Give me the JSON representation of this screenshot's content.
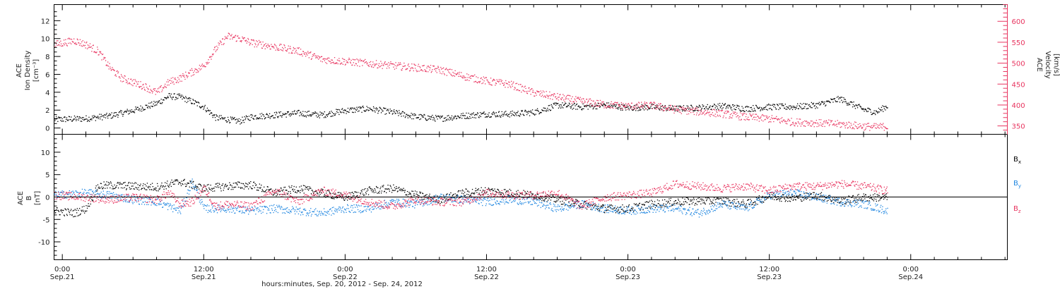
{
  "colors": {
    "black": "#000000",
    "pink": "#e8345f",
    "blue": "#1f86e0"
  },
  "x_axis": {
    "tick_labels": [
      {
        "time": "0:00",
        "date": "Sep.21",
        "hours": 0
      },
      {
        "time": "12:00",
        "date": "Sep.21",
        "hours": 12
      },
      {
        "time": "0:00",
        "date": "Sep.22",
        "hours": 24
      },
      {
        "time": "12:00",
        "date": "Sep.22",
        "hours": 36
      },
      {
        "time": "0:00",
        "date": "Sep.23",
        "hours": 48
      },
      {
        "time": "12:00",
        "date": "Sep.23",
        "hours": 60
      },
      {
        "time": "0:00",
        "date": "Sep.24",
        "hours": 72
      }
    ],
    "label": "hours:minutes, Sep. 20, 2012 - Sep. 24, 2012",
    "range_hours": [
      -0.7,
      80.2
    ]
  },
  "panel_top": {
    "left_label": [
      "ACE",
      "Ion Density",
      "[cm⁻³]"
    ],
    "right_label": [
      "ACE",
      "Velocity",
      "[km/s]"
    ],
    "left_ticks": [
      "0",
      "2",
      "4",
      "6",
      "8",
      "10",
      "12"
    ],
    "right_ticks": [
      "350",
      "400",
      "450",
      "500",
      "550",
      "600"
    ]
  },
  "panel_bottom": {
    "left_label": [
      "ACE",
      "B",
      "[nT]"
    ],
    "left_ticks": [
      "-10",
      "-5",
      "0",
      "5",
      "10"
    ],
    "legend": [
      {
        "name": "B",
        "sub": "x",
        "color": "#000000"
      },
      {
        "name": "B",
        "sub": "y",
        "color": "#1f86e0"
      },
      {
        "name": "B",
        "sub": "z",
        "color": "#e8345f"
      }
    ]
  },
  "chart_data": [
    {
      "type": "scatter",
      "title": "",
      "xlabel": "hours:minutes, Sep. 20, 2012 - Sep. 24, 2012",
      "series": [
        {
          "name": "Ion Density",
          "axis": "left",
          "color": "#000000",
          "ylim": [
            -0.7,
            13.8
          ],
          "x": [
            -0.7,
            2,
            4,
            6,
            8,
            9,
            10,
            11,
            12,
            13,
            14,
            15,
            16,
            18,
            20,
            22,
            24,
            26,
            28,
            30,
            32,
            34,
            36,
            38,
            40,
            42,
            44,
            46,
            48,
            50,
            52,
            54,
            56,
            58,
            60,
            62,
            64,
            66,
            68,
            69,
            70
          ],
          "y": [
            1.0,
            1.1,
            1.4,
            2.0,
            2.8,
            3.6,
            3.5,
            3.0,
            2.4,
            1.2,
            1.0,
            0.8,
            1.3,
            1.5,
            1.7,
            1.5,
            2.0,
            2.2,
            1.8,
            1.3,
            1.1,
            1.4,
            1.6,
            1.6,
            1.8,
            2.6,
            2.4,
            2.6,
            2.3,
            2.4,
            2.2,
            2.3,
            2.5,
            2.2,
            2.4,
            2.4,
            2.6,
            3.3,
            2.1,
            1.8,
            2.5
          ]
        },
        {
          "name": "Velocity",
          "axis": "right",
          "color": "#e8345f",
          "ylim": [
            330,
            640
          ],
          "x": [
            -0.7,
            1,
            2,
            3,
            4,
            5,
            6,
            7,
            8,
            9,
            10,
            11,
            12,
            13,
            14,
            15,
            16,
            18,
            20,
            22,
            24,
            26,
            28,
            30,
            32,
            34,
            36,
            38,
            40,
            42,
            44,
            46,
            48,
            50,
            52,
            54,
            56,
            58,
            60,
            62,
            64,
            66,
            68,
            69,
            70
          ],
          "y": [
            545,
            555,
            545,
            530,
            490,
            465,
            455,
            445,
            430,
            455,
            465,
            480,
            495,
            535,
            565,
            560,
            550,
            540,
            530,
            510,
            505,
            500,
            495,
            490,
            485,
            470,
            458,
            450,
            430,
            420,
            410,
            402,
            398,
            400,
            390,
            385,
            380,
            372,
            368,
            360,
            358,
            355,
            350,
            348,
            350
          ]
        }
      ]
    },
    {
      "type": "scatter",
      "title": "",
      "ylim": [
        -14,
        14
      ],
      "series": [
        {
          "name": "Bx",
          "color": "#000000",
          "x": [
            -0.7,
            1,
            2,
            3,
            4,
            6,
            8,
            10,
            12,
            14,
            16,
            18,
            20,
            22,
            24,
            26,
            28,
            30,
            32,
            34,
            36,
            38,
            40,
            42,
            44,
            46,
            48,
            50,
            52,
            54,
            56,
            58,
            60,
            62,
            64,
            66,
            68,
            70
          ],
          "y": [
            -3.0,
            -3.5,
            -2.5,
            2.5,
            2.7,
            2.5,
            2.3,
            3.5,
            2.0,
            2.5,
            2.8,
            1.0,
            2.0,
            1.0,
            0.0,
            1.5,
            2.0,
            0.5,
            -0.5,
            1.0,
            1.5,
            1.0,
            0.5,
            -0.5,
            -1.5,
            -2.5,
            -2.5,
            -1.5,
            -1.0,
            -0.8,
            -0.8,
            -1.5,
            0.3,
            -0.2,
            0.5,
            -0.8,
            0.0,
            0.0
          ]
        },
        {
          "name": "By",
          "color": "#1f86e0",
          "x": [
            -0.7,
            2,
            4,
            6,
            8,
            10,
            11,
            12,
            14,
            16,
            18,
            20,
            22,
            24,
            26,
            28,
            30,
            32,
            34,
            36,
            38,
            40,
            42,
            44,
            46,
            48,
            50,
            52,
            54,
            56,
            58,
            60,
            62,
            64,
            66,
            68,
            70
          ],
          "y": [
            0.5,
            1.0,
            0.5,
            -0.5,
            -1.0,
            -3.0,
            3.5,
            -2.5,
            -2.5,
            -3.0,
            -2.5,
            -3.0,
            -3.5,
            -2.5,
            -2.5,
            -1.0,
            -1.5,
            0.0,
            -0.5,
            -1.0,
            -0.5,
            -1.0,
            -2.5,
            -1.5,
            -2.5,
            -3.0,
            -2.5,
            -2.5,
            -3.5,
            -1.5,
            -2.5,
            0.5,
            1.0,
            0.0,
            -1.0,
            -1.5,
            -3.0
          ]
        },
        {
          "name": "Bz",
          "color": "#e8345f",
          "x": [
            -0.7,
            2,
            4,
            6,
            8,
            9,
            10,
            11,
            12,
            13,
            14,
            16,
            18,
            20,
            22,
            24,
            26,
            28,
            30,
            32,
            34,
            36,
            38,
            40,
            42,
            44,
            46,
            48,
            50,
            52,
            54,
            56,
            58,
            60,
            62,
            64,
            66,
            68,
            70
          ],
          "y": [
            0.5,
            0.0,
            -0.5,
            0.0,
            -0.5,
            1.0,
            -1.5,
            -1.0,
            2.0,
            -2.0,
            -1.5,
            -2.0,
            1.5,
            -1.0,
            1.5,
            0.5,
            -1.0,
            -2.0,
            -0.5,
            -1.0,
            -1.0,
            1.0,
            0.5,
            0.5,
            1.0,
            -2.0,
            0.0,
            0.5,
            1.0,
            3.0,
            2.5,
            2.0,
            2.5,
            1.5,
            2.5,
            2.5,
            3.0,
            2.5,
            1.5
          ]
        }
      ]
    }
  ]
}
